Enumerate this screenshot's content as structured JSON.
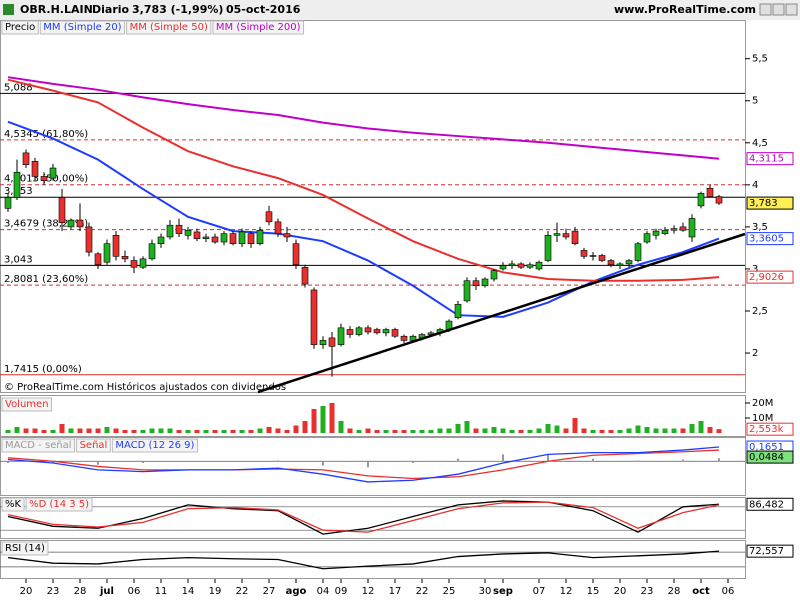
{
  "header": {
    "symbol": "OBR.H.LAIN",
    "period": "Diario",
    "last": "3,783 (-1,99%)",
    "date": "05-oct-2016",
    "site": "www.ProRealTime.com"
  },
  "footer": "© ProRealTime.com Históricos ajustados con dividendos",
  "xticks": [
    {
      "value": 2,
      "label": "20"
    },
    {
      "value": 5,
      "label": "23"
    },
    {
      "value": 8,
      "label": "28"
    },
    {
      "value": 11,
      "label": "jul"
    },
    {
      "value": 14,
      "label": "06"
    },
    {
      "value": 17,
      "label": "11"
    },
    {
      "value": 20,
      "label": "14"
    },
    {
      "value": 23,
      "label": "19"
    },
    {
      "value": 26,
      "label": "22"
    },
    {
      "value": 29,
      "label": "27"
    },
    {
      "value": 32,
      "label": "ago"
    },
    {
      "value": 35,
      "label": "04"
    },
    {
      "value": 37,
      "label": "09"
    },
    {
      "value": 40,
      "label": "12"
    },
    {
      "value": 43,
      "label": "17"
    },
    {
      "value": 46,
      "label": "22"
    },
    {
      "value": 49,
      "label": "25"
    },
    {
      "value": 53,
      "label": "30"
    },
    {
      "value": 55,
      "label": "sep"
    },
    {
      "value": 59,
      "label": "07"
    },
    {
      "value": 62,
      "label": "12"
    },
    {
      "value": 65,
      "label": "15"
    },
    {
      "value": 68,
      "label": "20"
    },
    {
      "value": 71,
      "label": "23"
    },
    {
      "value": 74,
      "label": "28"
    },
    {
      "value": 77,
      "label": "oct"
    },
    {
      "value": 80,
      "label": "06"
    }
  ],
  "chart_data": [
    {
      "type": "candlestick",
      "name": "Precio",
      "ylim": [
        1.62,
        5.96
      ],
      "yticks": [
        {
          "value": 5.5,
          "label": "5,5"
        },
        5,
        {
          "value": 4.5,
          "label": "4,5"
        },
        4,
        {
          "value": 3.5,
          "label": "3,5"
        },
        3,
        {
          "value": 2.5,
          "label": "2,5"
        },
        2
      ],
      "up_color": "#1fb01f",
      "down_color": "#e8302e",
      "open": [
        3.72,
        3.85,
        4.38,
        4.28,
        4.1,
        4.08,
        3.85,
        3.5,
        3.58,
        3.5,
        3.18,
        3.08,
        3.4,
        3.15,
        3.1,
        3.02,
        3.12,
        3.3,
        3.38,
        3.52,
        3.4,
        3.44,
        3.36,
        3.38,
        3.32,
        3.42,
        3.3,
        3.42,
        3.3,
        3.68,
        3.56,
        3.42,
        3.3,
        3.02,
        2.75,
        2.1,
        2.18,
        2.1,
        2.28,
        2.22,
        2.3,
        2.28,
        2.24,
        2.28,
        2.2,
        2.15,
        2.18,
        2.22,
        2.24,
        2.28,
        2.42,
        2.62,
        2.86,
        2.8,
        2.88,
        3.0,
        3.04,
        3.06,
        3.02,
        3.0,
        3.1,
        3.4,
        3.42,
        3.45,
        3.22,
        3.15,
        3.16,
        3.1,
        3.04,
        3.06,
        3.1,
        3.32,
        3.4,
        3.42,
        3.46,
        3.5,
        3.38,
        3.75,
        3.96,
        3.86
      ],
      "high": [
        3.9,
        4.3,
        4.42,
        4.32,
        4.15,
        4.25,
        3.95,
        3.6,
        3.78,
        3.55,
        3.2,
        3.35,
        3.45,
        3.22,
        3.15,
        3.15,
        3.35,
        3.42,
        3.58,
        3.6,
        3.5,
        3.48,
        3.42,
        3.42,
        3.45,
        3.45,
        3.48,
        3.45,
        3.5,
        3.75,
        3.6,
        3.5,
        3.35,
        3.05,
        2.78,
        2.2,
        2.25,
        2.35,
        2.32,
        2.32,
        2.33,
        2.3,
        2.3,
        2.3,
        2.22,
        2.22,
        2.24,
        2.26,
        2.3,
        2.4,
        2.62,
        2.9,
        2.9,
        2.9,
        3.0,
        3.08,
        3.1,
        3.08,
        3.08,
        3.1,
        3.45,
        3.55,
        3.48,
        3.5,
        3.25,
        3.2,
        3.18,
        3.12,
        3.08,
        3.12,
        3.32,
        3.45,
        3.48,
        3.5,
        3.52,
        3.55,
        3.65,
        3.92,
        4.0,
        3.88
      ],
      "low": [
        3.68,
        3.82,
        4.2,
        4.05,
        4.0,
        4.05,
        3.45,
        3.47,
        3.45,
        3.15,
        3.0,
        3.05,
        3.1,
        3.08,
        2.95,
        3.0,
        3.1,
        3.25,
        3.35,
        3.38,
        3.35,
        3.33,
        3.32,
        3.3,
        3.28,
        3.28,
        3.26,
        3.25,
        3.28,
        3.52,
        3.38,
        3.32,
        3.0,
        2.78,
        2.05,
        2.05,
        1.72,
        2.08,
        2.18,
        2.2,
        2.22,
        2.22,
        2.2,
        2.18,
        2.12,
        2.12,
        2.15,
        2.2,
        2.2,
        2.25,
        2.4,
        2.6,
        2.75,
        2.78,
        2.85,
        2.98,
        3.0,
        3.0,
        3.0,
        2.98,
        3.08,
        3.32,
        3.35,
        3.28,
        3.12,
        3.1,
        3.08,
        3.02,
        3.0,
        3.02,
        3.08,
        3.3,
        3.35,
        3.4,
        3.42,
        3.44,
        3.32,
        3.72,
        3.85,
        3.76
      ],
      "close": [
        3.85,
        4.15,
        4.24,
        4.1,
        4.05,
        4.2,
        3.55,
        3.58,
        3.5,
        3.2,
        3.05,
        3.3,
        3.15,
        3.12,
        3.02,
        3.12,
        3.3,
        3.38,
        3.52,
        3.42,
        3.46,
        3.36,
        3.38,
        3.32,
        3.42,
        3.3,
        3.44,
        3.3,
        3.46,
        3.56,
        3.42,
        3.38,
        3.05,
        2.82,
        2.1,
        2.15,
        2.08,
        2.3,
        2.22,
        2.3,
        2.25,
        2.24,
        2.28,
        2.2,
        2.15,
        2.2,
        2.22,
        2.24,
        2.28,
        2.38,
        2.58,
        2.86,
        2.8,
        2.88,
        2.98,
        3.04,
        3.06,
        3.02,
        3.05,
        3.08,
        3.4,
        3.42,
        3.38,
        3.3,
        3.15,
        3.16,
        3.1,
        3.05,
        3.06,
        3.1,
        3.3,
        3.42,
        3.45,
        3.46,
        3.48,
        3.46,
        3.6,
        3.9,
        3.86,
        3.783
      ],
      "series": [
        {
          "name": "MM (Simple 20)",
          "color": "#1e3cff",
          "x": [
            0,
            5,
            10,
            15,
            20,
            25,
            30,
            35,
            40,
            45,
            50,
            55,
            60,
            65,
            70,
            75,
            79
          ],
          "values": [
            4.75,
            4.55,
            4.3,
            3.95,
            3.62,
            3.45,
            3.42,
            3.33,
            3.1,
            2.8,
            2.45,
            2.43,
            2.6,
            2.85,
            3.05,
            3.2,
            3.3605
          ]
        },
        {
          "name": "MM (Simple 50)",
          "color": "#e8302e",
          "x": [
            0,
            5,
            10,
            15,
            20,
            25,
            30,
            35,
            40,
            45,
            50,
            55,
            60,
            65,
            70,
            75,
            79
          ],
          "values": [
            5.25,
            5.12,
            4.98,
            4.68,
            4.4,
            4.22,
            4.08,
            3.88,
            3.6,
            3.33,
            3.12,
            2.96,
            2.88,
            2.86,
            2.86,
            2.87,
            2.9026
          ]
        },
        {
          "name": "MM (Simple 200)",
          "color": "#c000c8",
          "x": [
            0,
            5,
            10,
            15,
            20,
            25,
            30,
            35,
            40,
            45,
            50,
            55,
            60,
            65,
            70,
            75,
            79
          ],
          "values": [
            5.28,
            5.2,
            5.13,
            5.04,
            4.96,
            4.89,
            4.83,
            4.74,
            4.67,
            4.62,
            4.58,
            4.54,
            4.5,
            4.45,
            4.4,
            4.35,
            4.31
          ]
        }
      ],
      "levels": [
        {
          "value": 5.088,
          "label": "5,088",
          "color": "#000000",
          "dashed": false
        },
        {
          "value": 4.5345,
          "label": "4,5345 (61,80%)",
          "color": "#d03030",
          "dashed": true
        },
        {
          "value": 4.0013,
          "label": "4,0013 (50,00%)",
          "color": "#d03030",
          "dashed": true
        },
        {
          "value": 3.853,
          "label": "3,853",
          "color": "#000000",
          "dashed": false
        },
        {
          "value": 3.4679,
          "label": "3,4679 (38,20%)",
          "color": "#d03030",
          "dashed": true
        },
        {
          "value": 3.043,
          "label": "3,043",
          "color": "#000000",
          "dashed": false
        },
        {
          "value": 2.8081,
          "label": "2,8081 (23,60%)",
          "color": "#d03030",
          "dashed": true
        },
        {
          "value": 1.7415,
          "label": "1,7415 (0,00%)",
          "color": "#d03030",
          "dashed": false
        }
      ],
      "badges": [
        {
          "value": 4.3115,
          "label": "4,3115",
          "color": "#c000c8"
        },
        {
          "value": 3.783,
          "label": "3,783",
          "color": "#000000",
          "fill": "#ffee55"
        },
        {
          "value": 3.3605,
          "label": "3,3605",
          "color": "#1e3cff"
        },
        {
          "value": 2.9026,
          "label": "2,9026",
          "color": "#e8302e"
        }
      ]
    },
    {
      "type": "bar",
      "title": "Volumen",
      "ylim": [
        0,
        24
      ],
      "yticks": [
        {
          "value": 20,
          "label": "20M"
        },
        {
          "value": 10,
          "label": "10M"
        }
      ],
      "values": [
        2,
        4,
        3,
        3,
        2,
        2,
        6,
        3,
        3,
        3,
        3,
        4,
        3,
        2,
        2,
        2,
        3,
        3,
        3,
        2,
        2,
        2,
        2,
        2,
        2,
        2,
        2,
        2,
        3,
        4,
        3,
        2,
        5,
        8,
        16,
        18,
        20,
        8,
        3,
        2,
        3,
        2,
        2,
        2,
        2,
        2,
        2,
        2,
        3,
        3,
        6,
        8,
        3,
        3,
        4,
        3,
        2,
        2,
        2,
        3,
        6,
        5,
        3,
        10,
        3,
        2,
        2,
        2,
        2,
        3,
        5,
        4,
        3,
        3,
        3,
        3,
        6,
        8,
        4,
        2.553
      ],
      "badges": [
        {
          "value": 2.553,
          "label": "2,553k",
          "color": "#e8302e"
        }
      ]
    },
    {
      "type": "line",
      "ylim": [
        -0.38,
        0.27
      ],
      "levels": [
        0
      ],
      "series": [
        {
          "name": "MACD - señal",
          "color": "#999999",
          "style": "bar",
          "x": [
            0,
            5,
            10,
            15,
            20,
            25,
            30,
            35,
            40,
            45,
            50,
            55,
            60,
            65,
            70,
            75,
            79
          ],
          "values": [
            -0.02,
            -0.02,
            -0.04,
            -0.02,
            0,
            0,
            0.01,
            -0.05,
            -0.07,
            -0.02,
            0.03,
            0.08,
            0.08,
            0.03,
            0.01,
            0.02,
            0.035
          ]
        },
        {
          "name": "Señal",
          "color": "#e8302e",
          "x": [
            0,
            5,
            10,
            15,
            20,
            25,
            30,
            35,
            40,
            45,
            50,
            55,
            60,
            65,
            70,
            75,
            79
          ],
          "values": [
            0.04,
            0.0,
            -0.06,
            -0.1,
            -0.1,
            -0.1,
            -0.09,
            -0.1,
            -0.17,
            -0.2,
            -0.18,
            -0.1,
            0.0,
            0.07,
            0.09,
            0.11,
            0.13
          ]
        },
        {
          "name": "MACD (12 26 9)",
          "color": "#1e3cff",
          "x": [
            0,
            5,
            10,
            15,
            20,
            25,
            30,
            35,
            40,
            45,
            50,
            55,
            60,
            65,
            70,
            75,
            79
          ],
          "values": [
            0.02,
            -0.02,
            -0.1,
            -0.12,
            -0.1,
            -0.1,
            -0.08,
            -0.15,
            -0.24,
            -0.22,
            -0.15,
            -0.02,
            0.08,
            0.1,
            0.1,
            0.13,
            0.1651
          ]
        }
      ],
      "badges": [
        {
          "value": 0.1651,
          "label": "0,1651",
          "color": "#1e3cff"
        },
        {
          "value": 0.0484,
          "label": "0,0484",
          "color": "#000000",
          "fill": "#7ee07e"
        }
      ]
    },
    {
      "type": "line",
      "ylim": [
        0,
        100
      ],
      "levels": [
        80,
        20
      ],
      "series": [
        {
          "name": "%K",
          "color": "#000000",
          "x": [
            0,
            5,
            10,
            15,
            20,
            25,
            30,
            35,
            40,
            45,
            50,
            55,
            60,
            65,
            70,
            75,
            79
          ],
          "values": [
            55,
            30,
            25,
            50,
            85,
            75,
            70,
            10,
            25,
            55,
            85,
            95,
            92,
            70,
            15,
            80,
            86.482
          ]
        },
        {
          "name": "%D (14 3 5)",
          "color": "#e8302e",
          "x": [
            0,
            5,
            10,
            15,
            20,
            25,
            30,
            35,
            40,
            45,
            50,
            55,
            60,
            65,
            70,
            75,
            79
          ],
          "values": [
            60,
            35,
            28,
            40,
            75,
            78,
            72,
            20,
            15,
            45,
            75,
            90,
            92,
            78,
            25,
            65,
            85
          ]
        }
      ],
      "badges": [
        {
          "value": 86.482,
          "label": "86,482",
          "color": "#000000"
        }
      ]
    },
    {
      "type": "line",
      "ylim": [
        0,
        100
      ],
      "levels": [
        70,
        30
      ],
      "series": [
        {
          "name": "RSI (14)",
          "color": "#000000",
          "x": [
            0,
            5,
            10,
            15,
            20,
            25,
            30,
            35,
            40,
            45,
            50,
            55,
            60,
            65,
            70,
            75,
            79
          ],
          "values": [
            55,
            40,
            38,
            50,
            55,
            52,
            50,
            25,
            32,
            38,
            58,
            65,
            68,
            55,
            60,
            65,
            72.557
          ]
        }
      ],
      "badges": [
        {
          "value": 72.557,
          "label": "72,557",
          "color": "#000000"
        }
      ]
    }
  ]
}
